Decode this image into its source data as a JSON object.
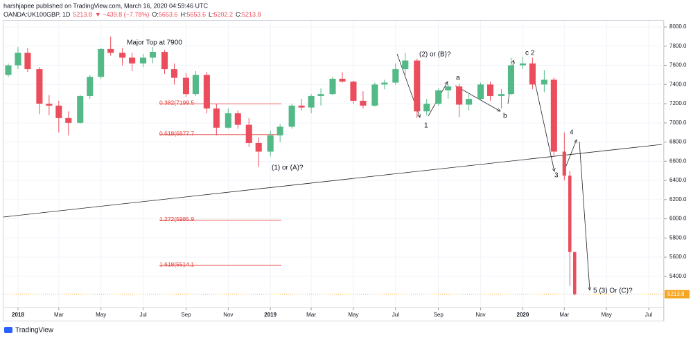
{
  "header": {
    "publisher": "harshjapee published on TradingView.com, March 16, 2020 04:59:46 UTC",
    "symbol": "OANDA:UK100GBP, 1D",
    "change": "▼ −439.8 (−7.78%)",
    "ohlc_labels": [
      "O:",
      "H:",
      "L:",
      "C:"
    ]
  },
  "footer": {
    "brand": "TradingView"
  },
  "chart_data": {
    "type": "candlestick",
    "x": [
      "2017-12-18",
      "2018-01-01",
      "2018-01-15",
      "2018-02-01",
      "2018-02-15",
      "2018-03-01",
      "2018-03-15",
      "2018-04-01",
      "2018-04-15",
      "2018-05-01",
      "2018-05-15",
      "2018-06-01",
      "2018-06-15",
      "2018-07-01",
      "2018-07-15",
      "2018-08-01",
      "2018-08-15",
      "2018-09-01",
      "2018-09-15",
      "2018-10-01",
      "2018-10-15",
      "2018-11-01",
      "2018-11-15",
      "2018-12-01",
      "2018-12-15",
      "2019-01-01",
      "2019-01-15",
      "2019-02-01",
      "2019-02-15",
      "2019-03-01",
      "2019-03-15",
      "2019-04-01",
      "2019-04-15",
      "2019-05-01",
      "2019-05-15",
      "2019-06-01",
      "2019-06-15",
      "2019-07-01",
      "2019-07-15",
      "2019-08-01",
      "2019-08-15",
      "2019-09-01",
      "2019-09-15",
      "2019-10-01",
      "2019-10-15",
      "2019-11-01",
      "2019-11-15",
      "2019-12-01",
      "2019-12-15",
      "2020-01-01",
      "2020-01-15",
      "2020-02-01",
      "2020-02-15",
      "2020-03-01",
      "2020-03-09",
      "2020-03-16"
    ],
    "open": [
      7500,
      7600,
      7730,
      7560,
      7200,
      7180,
      7050,
      7000,
      7280,
      7480,
      7770,
      7730,
      7680,
      7620,
      7680,
      7740,
      7560,
      7470,
      7300,
      7500,
      7150,
      6950,
      7100,
      6980,
      6790,
      6700,
      6870,
      6960,
      7180,
      7160,
      7280,
      7300,
      7460,
      7430,
      7230,
      7180,
      7400,
      7420,
      7560,
      7650,
      7120,
      7200,
      7340,
      7380,
      7190,
      7250,
      7400,
      7280,
      7300,
      7600,
      7620,
      7400,
      7450,
      6700,
      6450,
      5653.6
    ],
    "high": [
      7620,
      7790,
      7780,
      7580,
      7290,
      7230,
      7120,
      7290,
      7500,
      7780,
      7900,
      7780,
      7730,
      7720,
      7790,
      7760,
      7620,
      7520,
      7540,
      7530,
      7200,
      7150,
      7130,
      7050,
      6850,
      6920,
      6990,
      7200,
      7250,
      7300,
      7360,
      7480,
      7530,
      7440,
      7330,
      7420,
      7450,
      7620,
      7730,
      7670,
      7250,
      7360,
      7400,
      7410,
      7300,
      7420,
      7430,
      7350,
      7680,
      7690,
      7680,
      7550,
      7470,
      6900,
      6500,
      5653.6
    ],
    "low": [
      7480,
      7560,
      7530,
      7090,
      7080,
      6900,
      6870,
      6990,
      7250,
      7460,
      7700,
      7600,
      7540,
      7580,
      7620,
      7510,
      7400,
      7270,
      7280,
      7100,
      6870,
      6940,
      6940,
      6750,
      6540,
      6650,
      6800,
      6940,
      7130,
      7100,
      7180,
      7290,
      7420,
      7200,
      7150,
      7170,
      7350,
      7400,
      7500,
      7050,
      7080,
      7180,
      7250,
      7060,
      7130,
      7240,
      7230,
      7150,
      7290,
      7560,
      7350,
      7320,
      6650,
      6400,
      5300,
      5202.2
    ],
    "close": [
      7600,
      7730,
      7560,
      7200,
      7180,
      7050,
      7000,
      7280,
      7480,
      7770,
      7730,
      7680,
      7620,
      7680,
      7740,
      7560,
      7470,
      7300,
      7500,
      7150,
      6950,
      7100,
      6980,
      6790,
      6700,
      6870,
      6960,
      7180,
      7160,
      7280,
      7300,
      7460,
      7430,
      7230,
      7180,
      7400,
      7420,
      7560,
      7650,
      7120,
      7200,
      7340,
      7380,
      7190,
      7250,
      7400,
      7280,
      7300,
      7600,
      7620,
      7400,
      7450,
      6700,
      6450,
      5653.6,
      5213.8
    ],
    "up_color": "#53b987",
    "down_color": "#eb4d5c",
    "grid": true,
    "xlim": [
      "2017-12-11",
      "2020-07-23"
    ],
    "xticks": [
      {
        "value": "2018-01-01",
        "label": "2018"
      },
      {
        "value": "2018-03-01",
        "label": "Mar"
      },
      {
        "value": "2018-05-01",
        "label": "May"
      },
      {
        "value": "2018-07-01",
        "label": "Jul"
      },
      {
        "value": "2018-09-01",
        "label": "Sep"
      },
      {
        "value": "2018-11-01",
        "label": "Nov"
      },
      {
        "value": "2019-01-01",
        "label": "2019"
      },
      {
        "value": "2019-03-01",
        "label": "Mar"
      },
      {
        "value": "2019-05-01",
        "label": "May"
      },
      {
        "value": "2019-07-01",
        "label": "Jul"
      },
      {
        "value": "2019-09-01",
        "label": "Sep"
      },
      {
        "value": "2019-11-01",
        "label": "Nov"
      },
      {
        "value": "2020-01-01",
        "label": "2020"
      },
      {
        "value": "2020-03-01",
        "label": "Mar"
      },
      {
        "value": "2020-05-01",
        "label": "May"
      },
      {
        "value": "2020-07-01",
        "label": "Jul"
      }
    ],
    "ylim": [
      5075,
      8065
    ],
    "yticks": [
      {
        "value": 5400,
        "label": "5400.0"
      },
      {
        "value": 5600,
        "label": "5600.0"
      },
      {
        "value": 5800,
        "label": "5800.0"
      },
      {
        "value": 6000,
        "label": "6000.0"
      },
      {
        "value": 6200,
        "label": "6200.0"
      },
      {
        "value": 6400,
        "label": "6400.0"
      },
      {
        "value": 6600,
        "label": "6600.0"
      },
      {
        "value": 6800,
        "label": "6800.0"
      },
      {
        "value": 7000,
        "label": "7000.0"
      },
      {
        "value": 7200,
        "label": "7200.0"
      },
      {
        "value": 7400,
        "label": "7400.0"
      },
      {
        "value": 7600,
        "label": "7600.0"
      },
      {
        "value": 7800,
        "label": "7800.0"
      },
      {
        "value": 8000,
        "label": "8000.0"
      }
    ],
    "fib_levels": [
      {
        "value": 7199.5,
        "label": "0.382(7199.5"
      },
      {
        "value": 6877.7,
        "label": "0.618(6877.7"
      },
      {
        "value": 5985.9,
        "label": "1.272(5985.9"
      },
      {
        "value": 5514.1,
        "label": "1.618(5514.1"
      }
    ],
    "annotations": [
      "Major Top at 7900",
      "(1) or (A)?",
      "(2) or (B)?",
      "a",
      "b",
      "c 2",
      "1",
      "3",
      "4",
      "5 (3) Or (C)?"
    ]
  }
}
